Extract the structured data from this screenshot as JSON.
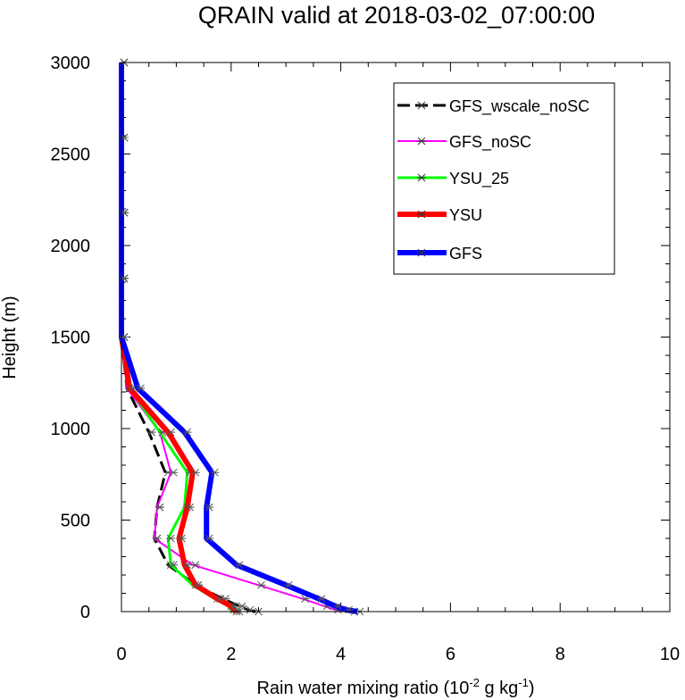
{
  "chart_data": {
    "type": "line",
    "title": "QRAIN valid at 2018-03-02_07:00:00",
    "xlabel_main": "Rain water mixing ratio (10",
    "xlabel_exp1": "-2",
    "xlabel_mid": " g kg",
    "xlabel_exp2": "-1",
    "xlabel_end": ")",
    "ylabel": "Height (m)",
    "xlim": [
      0,
      10
    ],
    "ylim": [
      0,
      3000
    ],
    "xticks": [
      0,
      2,
      4,
      6,
      8,
      10
    ],
    "xtick_labels": [
      "0",
      "2",
      "4",
      "6",
      "8",
      "10"
    ],
    "yticks": [
      0,
      500,
      1000,
      1500,
      2000,
      2500,
      3000
    ],
    "ytick_labels": [
      "0",
      "500",
      "1000",
      "1500",
      "2000",
      "2500",
      "3000"
    ],
    "legend_position": "top-right",
    "heights": [
      0,
      10,
      30,
      70,
      145,
      255,
      400,
      570,
      760,
      980,
      1220,
      1500,
      1820,
      2180,
      2590,
      3000
    ],
    "series": [
      {
        "name": "GFS_wscale_noSC",
        "color": "#000000",
        "dash": true,
        "values": [
          2.45,
          2.3,
          2.15,
          1.85,
          1.35,
          0.85,
          0.6,
          0.65,
          0.8,
          0.5,
          0.1,
          0,
          0,
          0,
          0,
          0
        ]
      },
      {
        "name": "GFS_noSC",
        "color": "#ff00ff",
        "dash": false,
        "values": [
          4.2,
          3.9,
          3.7,
          3.3,
          2.5,
          1.3,
          0.6,
          0.65,
          0.9,
          0.7,
          0.1,
          0,
          0,
          0,
          0,
          0
        ]
      },
      {
        "name": "YSU_25",
        "color": "#00ff00",
        "dash": false,
        "values": [
          2.05,
          2.0,
          1.95,
          1.7,
          1.3,
          0.9,
          0.85,
          1.15,
          1.2,
          0.7,
          0.15,
          0,
          0,
          0,
          0,
          0
        ]
      },
      {
        "name": "YSU",
        "color": "#ff0000",
        "dash": false,
        "values": [
          2.1,
          2.05,
          2.0,
          1.75,
          1.35,
          1.15,
          1.05,
          1.2,
          1.3,
          0.85,
          0.15,
          0,
          0,
          0,
          0,
          0
        ]
      },
      {
        "name": "GFS",
        "color": "#0000ff",
        "dash": false,
        "values": [
          4.3,
          4.1,
          3.9,
          3.6,
          3.0,
          2.1,
          1.55,
          1.55,
          1.65,
          1.15,
          0.3,
          0,
          0,
          0,
          0,
          0
        ]
      }
    ]
  }
}
